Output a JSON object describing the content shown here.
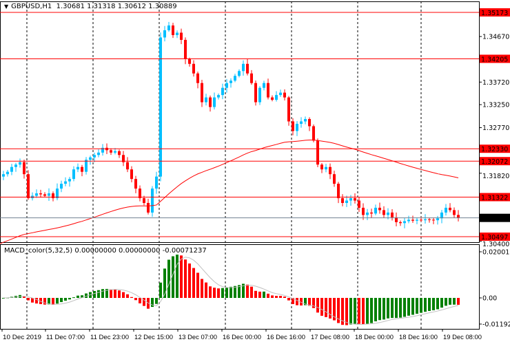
{
  "header": {
    "symbol": "GBPUSD,H1",
    "open": "1.30681",
    "high": "1.31318",
    "low": "1.30612",
    "close": "1.30889"
  },
  "macd_header": {
    "name": "MACD_color(5,32,5)",
    "v1": "0.00000000",
    "v2": "0.00000000",
    "v3": "-0.00071237"
  },
  "colors": {
    "bull": "#00bfff",
    "bear": "#ff0000",
    "level": "#ff0000",
    "ma": "#ff0000",
    "hist_up": "#008000",
    "hist_down": "#ff0000",
    "signal": "#c0c0c0",
    "current": "#708090"
  },
  "chart_data": {
    "type": "candlestick",
    "title": "GBPUSD,H1",
    "ylim": [
      1.304,
      1.353
    ],
    "price_ticks": [
      "1.34670",
      "1.33720",
      "1.33250",
      "1.32770",
      "1.31820",
      "1.30400"
    ],
    "levels": [
      {
        "value": 1.35173,
        "label": "1.35173"
      },
      {
        "value": 1.34205,
        "label": "1.34205"
      },
      {
        "value": 1.3233,
        "label": "1.32330"
      },
      {
        "value": 1.32072,
        "label": "1.32072"
      },
      {
        "value": 1.31322,
        "label": "1.31322"
      },
      {
        "value": 1.30497,
        "label": "1.30497"
      }
    ],
    "current_price": {
      "value": 1.30889,
      "label": "1.30889"
    },
    "time_labels": [
      "10 Dec 2019",
      "11 Dec 07:00",
      "11 Dec 23:00",
      "12 Dec 15:00",
      "13 Dec 07:00",
      "16 Dec 00:00",
      "16 Dec 16:00",
      "17 Dec 08:00",
      "18 Dec 00:00",
      "18 Dec 16:00",
      "19 Dec 08:00"
    ],
    "closes": [
      1.318,
      1.3185,
      1.3195,
      1.32,
      1.3205,
      1.318,
      1.313,
      1.3135,
      1.314,
      1.3138,
      1.3135,
      1.314,
      1.313,
      1.315,
      1.316,
      1.3165,
      1.317,
      1.319,
      1.3195,
      1.3185,
      1.321,
      1.3215,
      1.322,
      1.3225,
      1.3235,
      1.323,
      1.3225,
      1.3228,
      1.322,
      1.3205,
      1.319,
      1.317,
      1.315,
      1.313,
      1.312,
      1.31,
      1.315,
      1.3175,
      1.3465,
      1.348,
      1.349,
      1.347,
      1.3475,
      1.346,
      1.342,
      1.341,
      1.339,
      1.337,
      1.333,
      1.334,
      1.332,
      1.334,
      1.3345,
      1.336,
      1.337,
      1.3375,
      1.3385,
      1.3395,
      1.341,
      1.339,
      1.337,
      1.333,
      1.336,
      1.337,
      1.334,
      1.3335,
      1.3345,
      1.335,
      1.334,
      1.329,
      1.327,
      1.3285,
      1.329,
      1.3295,
      1.328,
      1.325,
      1.32,
      1.319,
      1.3195,
      1.318,
      1.316,
      1.313,
      1.312,
      1.3125,
      1.313,
      1.3125,
      1.311,
      1.3095,
      1.31,
      1.3098,
      1.311,
      1.3105,
      1.3095,
      1.31,
      1.309,
      1.308,
      1.3078,
      1.3082,
      1.3085,
      1.3083,
      1.3085,
      1.3084,
      1.3086,
      1.3085,
      1.3084,
      1.3088,
      1.31,
      1.311,
      1.3105,
      1.3095,
      1.3089
    ],
    "macd": {
      "fast": 5,
      "slow": 32,
      "signal": 5,
      "axis_ticks": [
        "0.0200132",
        "0.00",
        "-0.011922"
      ],
      "ylim": [
        -0.011922,
        0.0200132
      ]
    }
  }
}
